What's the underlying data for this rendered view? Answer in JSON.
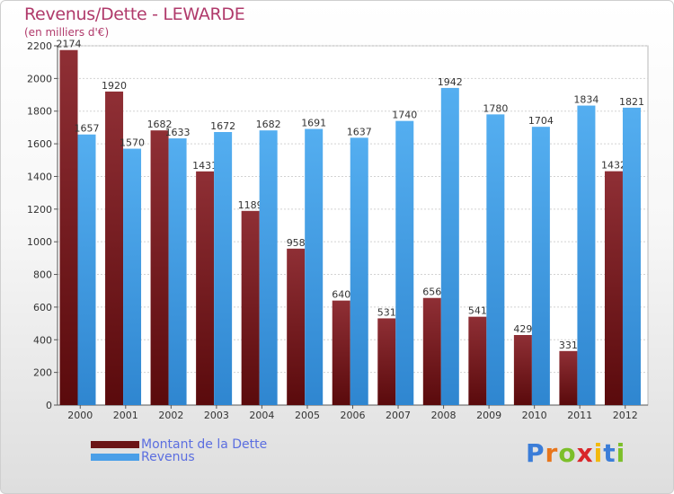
{
  "title": "Revenus/Dette - LEWARDE",
  "subtitle": "(en milliers d'€)",
  "logo": {
    "text": "Proxiti",
    "letter_colors": [
      "#3b7dd8",
      "#e8751a",
      "#7cbf2a",
      "#d9262a",
      "#f2b90c",
      "#3b7dd8",
      "#7cbf2a"
    ]
  },
  "chart_data": {
    "type": "bar",
    "title": "Revenus/Dette - LEWARDE",
    "subtitle": "(en milliers d'€)",
    "categories": [
      "2000",
      "2001",
      "2002",
      "2003",
      "2004",
      "2005",
      "2006",
      "2007",
      "2008",
      "2009",
      "2010",
      "2011",
      "2012"
    ],
    "series": [
      {
        "name": "Montant de la Dette",
        "color": "#6b1416",
        "values": [
          2174,
          1920,
          1682,
          1431,
          1189,
          958,
          640,
          531,
          656,
          541,
          429,
          331,
          1432
        ]
      },
      {
        "name": "Revenus",
        "color": "#4a9fe8",
        "values": [
          1657,
          1570,
          1633,
          1672,
          1682,
          1691,
          1637,
          1740,
          1942,
          1780,
          1704,
          1834,
          1821
        ]
      }
    ],
    "ylim": [
      0,
      2200
    ],
    "yticks": [
      0,
      200,
      400,
      600,
      800,
      1000,
      1200,
      1400,
      1600,
      1800,
      2000,
      2200
    ],
    "grid": true,
    "legend": "bottom-left"
  }
}
